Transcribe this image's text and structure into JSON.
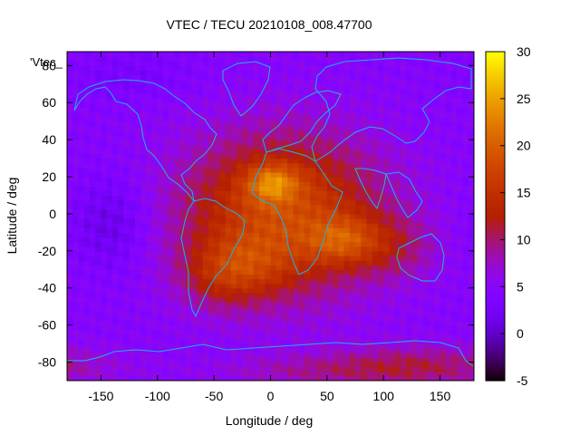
{
  "chart_data": {
    "type": "heatmap",
    "title": "VTEC / TECU 20210108_008.47700",
    "xlabel": "Longitude / deg",
    "ylabel": "Latitude / deg",
    "legend_label": "'Vtec_",
    "xlim": [
      -180,
      180
    ],
    "ylim": [
      -90,
      87.5
    ],
    "x_ticks": [
      -150,
      -100,
      -50,
      0,
      50,
      100,
      150
    ],
    "y_ticks": [
      -80,
      -60,
      -40,
      -20,
      0,
      20,
      40,
      60,
      80
    ],
    "colorbar": {
      "range": [
        -5,
        30
      ],
      "ticks": [
        -5,
        0,
        5,
        10,
        15,
        20,
        25,
        30
      ],
      "palette": "gnuplot default (rgbformulae 7,5,15)"
    },
    "grid_resolution": {
      "dlon": 5,
      "dlat": 2.5
    },
    "features": [
      {
        "name": "equatorial-anomaly-crest-africa",
        "lon": 0,
        "lat": 18,
        "value": 28
      },
      {
        "name": "equatorial-anomaly-crest-indian-ocean",
        "lon": 65,
        "lat": -15,
        "value": 25
      },
      {
        "name": "equatorial-band-atlantic",
        "lon": -30,
        "lat": 5,
        "value": 21
      },
      {
        "name": "southern-crest-atlantic",
        "lon": -20,
        "lat": -25,
        "value": 19
      },
      {
        "name": "pacific-minimum",
        "lon": -140,
        "lat": -5,
        "value": 2
      },
      {
        "name": "arctic-minimum",
        "lon": -120,
        "lat": 75,
        "value": 5
      },
      {
        "name": "southern-polar-band",
        "lon": 130,
        "lat": -80,
        "value": 13
      }
    ],
    "coastlines": "continental outlines overlaid in light blue"
  },
  "colors": {
    "coastline": "#19b4e8",
    "background": "#ffffff",
    "axis": "#000000"
  }
}
